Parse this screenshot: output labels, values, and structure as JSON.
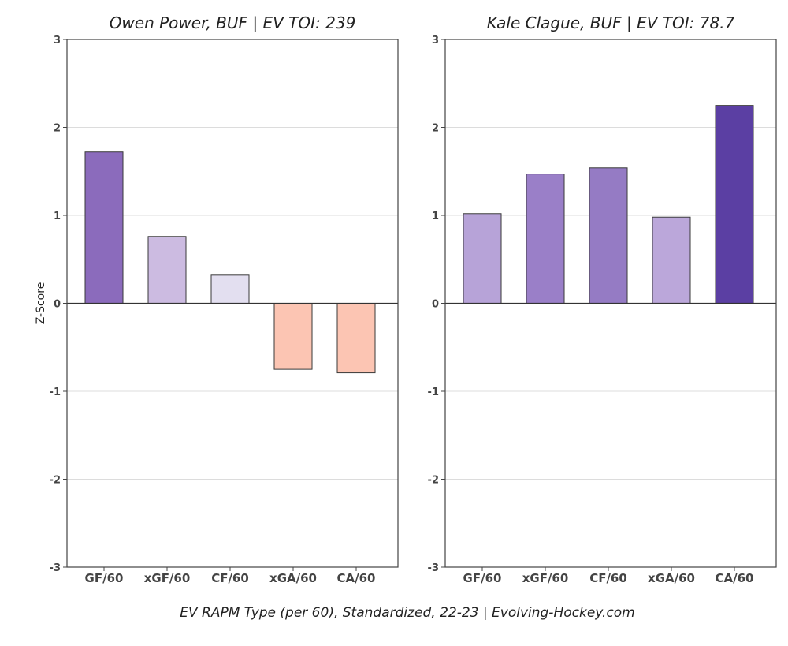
{
  "footer": "EV RAPM Type (per 60), Standardized, 22-23   |   Evolving-Hockey.com",
  "chart_data": [
    {
      "type": "bar",
      "title": "Owen Power, BUF  |  EV TOI: 239",
      "ylabel": "Z-Score",
      "xlabel": "",
      "ylim": [
        -3,
        3
      ],
      "yticks": [
        3,
        2,
        1,
        0,
        -1,
        -2,
        -3
      ],
      "grid": true,
      "categories": [
        "GF/60",
        "xGF/60",
        "CF/60",
        "xGA/60",
        "CA/60"
      ],
      "values": [
        1.72,
        0.76,
        0.32,
        -0.75,
        -0.79
      ],
      "colors": [
        "#8b6bbc",
        "#ccbbe1",
        "#e3dff0",
        "#fcc5b3",
        "#fcc5b3"
      ]
    },
    {
      "type": "bar",
      "title": "Kale Clague, BUF  |  EV TOI: 78.7",
      "ylabel": "",
      "xlabel": "",
      "ylim": [
        -3,
        3
      ],
      "yticks": [
        3,
        2,
        1,
        0,
        -1,
        -2,
        -3
      ],
      "grid": true,
      "categories": [
        "GF/60",
        "xGF/60",
        "CF/60",
        "xGA/60",
        "CA/60"
      ],
      "values": [
        1.02,
        1.47,
        1.54,
        0.98,
        2.25
      ],
      "colors": [
        "#b7a3d8",
        "#9a7fc8",
        "#957bc4",
        "#bba7da",
        "#5b3fa3"
      ]
    }
  ]
}
